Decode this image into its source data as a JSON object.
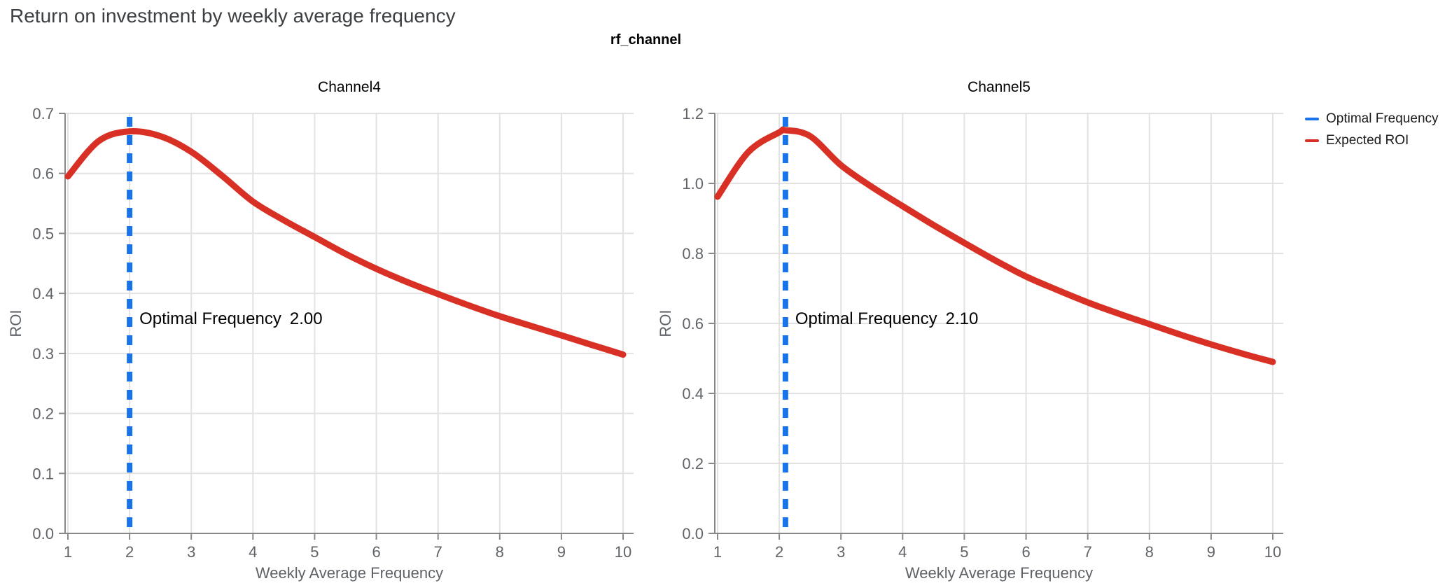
{
  "page": {
    "title": "Return on investment by weekly average frequency"
  },
  "facet": {
    "title": "rf_channel"
  },
  "legend": {
    "items": [
      {
        "label": "Optimal Frequency",
        "color": "#1A73E8"
      },
      {
        "label": "Expected ROI",
        "color": "#D93025"
      }
    ]
  },
  "colors": {
    "expected_roi": "#D93025",
    "optimal_frequency": "#1A73E8",
    "grid": "#E2E2E2",
    "axis": "#888888",
    "tick_label": "#5F6368",
    "axis_title": "#5F6368",
    "panel_title": "#000000",
    "annotation": "#000000",
    "page_title": "#3C4043"
  },
  "chart_data": {
    "type": "line",
    "title": "rf_channel",
    "xlabel": "Weekly Average Frequency",
    "ylabel": "ROI",
    "grid": true,
    "legend_position": "top-right",
    "x_ticks": [
      1,
      2,
      3,
      4,
      5,
      6,
      7,
      8,
      9,
      10
    ],
    "xlim": [
      1,
      10
    ],
    "panels": [
      {
        "title": "Channel4",
        "ylim": [
          0,
          0.7
        ],
        "y_ticks": [
          0.0,
          0.1,
          0.2,
          0.3,
          0.4,
          0.5,
          0.6,
          0.7
        ],
        "optimal_frequency": 2.0,
        "annotation": {
          "label": "Optimal Frequency",
          "value": "2.00"
        },
        "series": {
          "name": "Expected ROI",
          "x": [
            1,
            1.5,
            2,
            2.5,
            3,
            3.5,
            4,
            4.5,
            5,
            5.5,
            6,
            6.5,
            7,
            7.5,
            8,
            8.5,
            9,
            9.5,
            10
          ],
          "y": [
            0.595,
            0.654,
            0.67,
            0.662,
            0.636,
            0.596,
            0.553,
            0.522,
            0.494,
            0.466,
            0.441,
            0.419,
            0.399,
            0.38,
            0.362,
            0.346,
            0.33,
            0.314,
            0.298
          ]
        }
      },
      {
        "title": "Channel5",
        "ylim": [
          0,
          1.2
        ],
        "y_ticks": [
          0.0,
          0.2,
          0.4,
          0.6,
          0.8,
          1.0,
          1.2
        ],
        "optimal_frequency": 2.1,
        "annotation": {
          "label": "Optimal Frequency",
          "value": "2.10"
        },
        "series": {
          "name": "Expected ROI",
          "x": [
            1,
            1.5,
            2,
            2.1,
            2.5,
            3,
            3.5,
            4,
            4.5,
            5,
            5.5,
            6,
            6.5,
            7,
            7.5,
            8,
            8.5,
            9,
            9.5,
            10
          ],
          "y": [
            0.962,
            1.09,
            1.146,
            1.152,
            1.135,
            1.052,
            0.99,
            0.935,
            0.881,
            0.83,
            0.78,
            0.734,
            0.696,
            0.66,
            0.628,
            0.598,
            0.568,
            0.54,
            0.514,
            0.49
          ]
        }
      }
    ]
  }
}
